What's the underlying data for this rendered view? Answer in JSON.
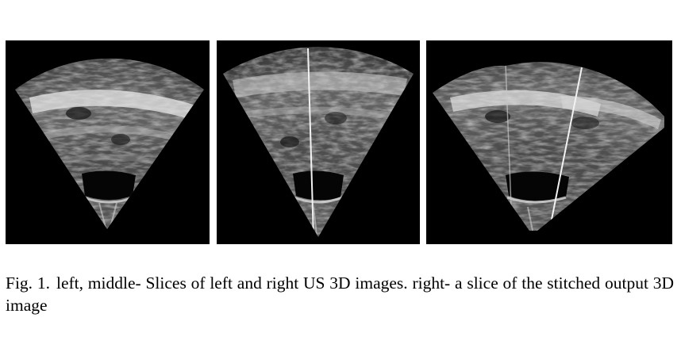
{
  "figure": {
    "panels": [
      {
        "position": "left",
        "content": "ultrasound-slice"
      },
      {
        "position": "middle",
        "content": "ultrasound-slice"
      },
      {
        "position": "right",
        "content": "ultrasound-slice"
      }
    ]
  },
  "caption": {
    "label": "Fig. 1.",
    "text": "left, middle- Slices of left and right US 3D images. right- a slice of the stitched output 3D image"
  }
}
